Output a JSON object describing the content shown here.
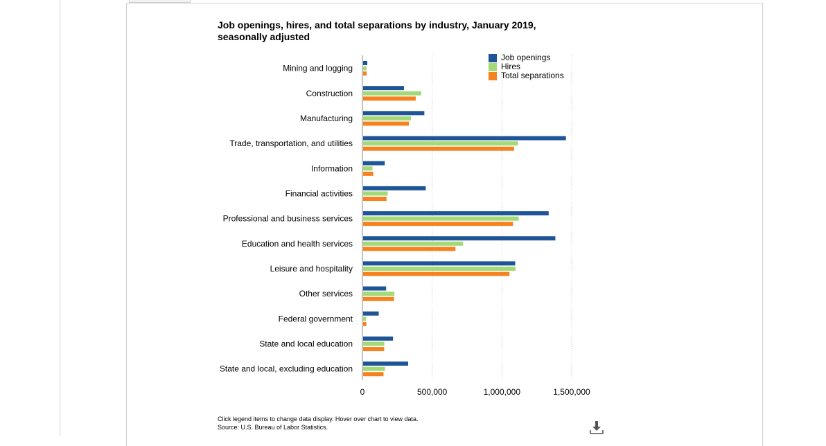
{
  "chart_data": {
    "type": "bar",
    "orientation": "horizontal",
    "title": "Job openings, hires, and total separations by industry, January 2019, seasonally adjusted",
    "categories": [
      "Mining and logging",
      "Construction",
      "Manufacturing",
      "Trade, transportation, and utilities",
      "Information",
      "Financial activities",
      "Professional and business services",
      "Education and health services",
      "Leisure and hospitality",
      "Other services",
      "Federal government",
      "State and local education",
      "State and local, excluding education"
    ],
    "series": [
      {
        "name": "Job openings",
        "color": "#1f5597",
        "values": [
          35000,
          298000,
          444000,
          1459000,
          160000,
          454000,
          1335000,
          1383000,
          1095000,
          170000,
          117000,
          219000,
          328000
        ]
      },
      {
        "name": "Hires",
        "color": "#a3d977",
        "values": [
          30000,
          422000,
          348000,
          1115000,
          72000,
          181000,
          1120000,
          721000,
          1097000,
          229000,
          26000,
          157000,
          162000
        ]
      },
      {
        "name": "Total separations",
        "color": "#f6821f",
        "values": [
          30000,
          382000,
          333000,
          1087000,
          78000,
          173000,
          1080000,
          667000,
          1054000,
          227000,
          28000,
          156000,
          151000
        ]
      }
    ],
    "xlim": [
      0,
      1500000
    ],
    "xticks": [
      "0",
      "500,000",
      "1,000,000",
      "1,500,000"
    ],
    "xtick_values": [
      0,
      500000,
      1000000,
      1500000
    ],
    "grid": true,
    "legend_position": "top-right"
  },
  "footer": {
    "line1": "Click legend items to change data display. Hover over chart to view data.",
    "line2": "Source: U.S. Bureau of Labor Statistics."
  },
  "icons": {
    "download": "download-icon"
  }
}
